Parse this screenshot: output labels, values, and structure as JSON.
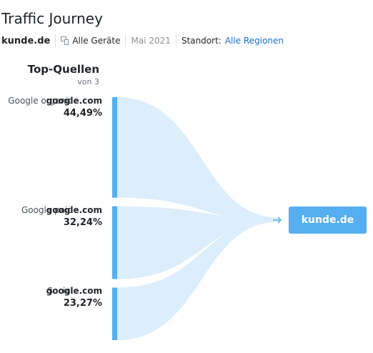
{
  "title": "Traffic Journey",
  "filters": {
    "domain": "kunde.de",
    "device": "Alle Geräte",
    "date": "Mai 2021",
    "location_label": "Standort:",
    "location_value": "Alle Regionen",
    "device_icon": "devices-icon"
  },
  "sources_header": {
    "title": "Top-Quellen",
    "subtitle": "von 3"
  },
  "chart_data": {
    "type": "sankey",
    "target": "kunde.de",
    "sources": [
      {
        "name": "Google organic",
        "domain": "google.com",
        "share": 44.49,
        "label": "44,49%"
      },
      {
        "name": "Google paid",
        "domain": "google.com",
        "share": 32.24,
        "label": "32,24%"
      },
      {
        "name": "Social",
        "domain": "google.com",
        "share": 23.27,
        "label": "23,27%"
      }
    ],
    "colors": {
      "bar": "#54aef0",
      "flow": "#dcedfb",
      "target": "#54aef0"
    }
  }
}
